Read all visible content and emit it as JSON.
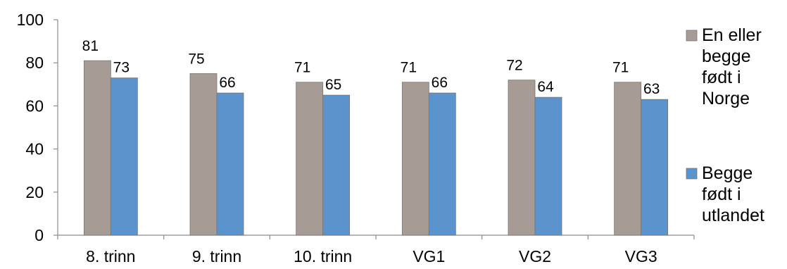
{
  "chart_data": {
    "type": "bar",
    "categories": [
      "8. trinn",
      "9. trinn",
      "10. trinn",
      "VG1",
      "VG2",
      "VG3"
    ],
    "series": [
      {
        "name": "En eller begge født i Norge",
        "legend_lines": [
          "En eller",
          "begge",
          "født i",
          "Norge"
        ],
        "values": [
          81,
          75,
          71,
          71,
          72,
          71
        ],
        "color": "#A69C95"
      },
      {
        "name": "Begge født i utlandet",
        "legend_lines": [
          "Begge",
          "født i",
          "utlandet"
        ],
        "values": [
          73,
          66,
          65,
          66,
          64,
          63
        ],
        "color": "#5B93CC"
      }
    ],
    "ylim": [
      0,
      100
    ],
    "yticks": [
      0,
      20,
      40,
      60,
      80,
      100
    ],
    "grid": false,
    "legend_position": "right",
    "data_labels": true,
    "title": "",
    "xlabel": "",
    "ylabel": ""
  }
}
